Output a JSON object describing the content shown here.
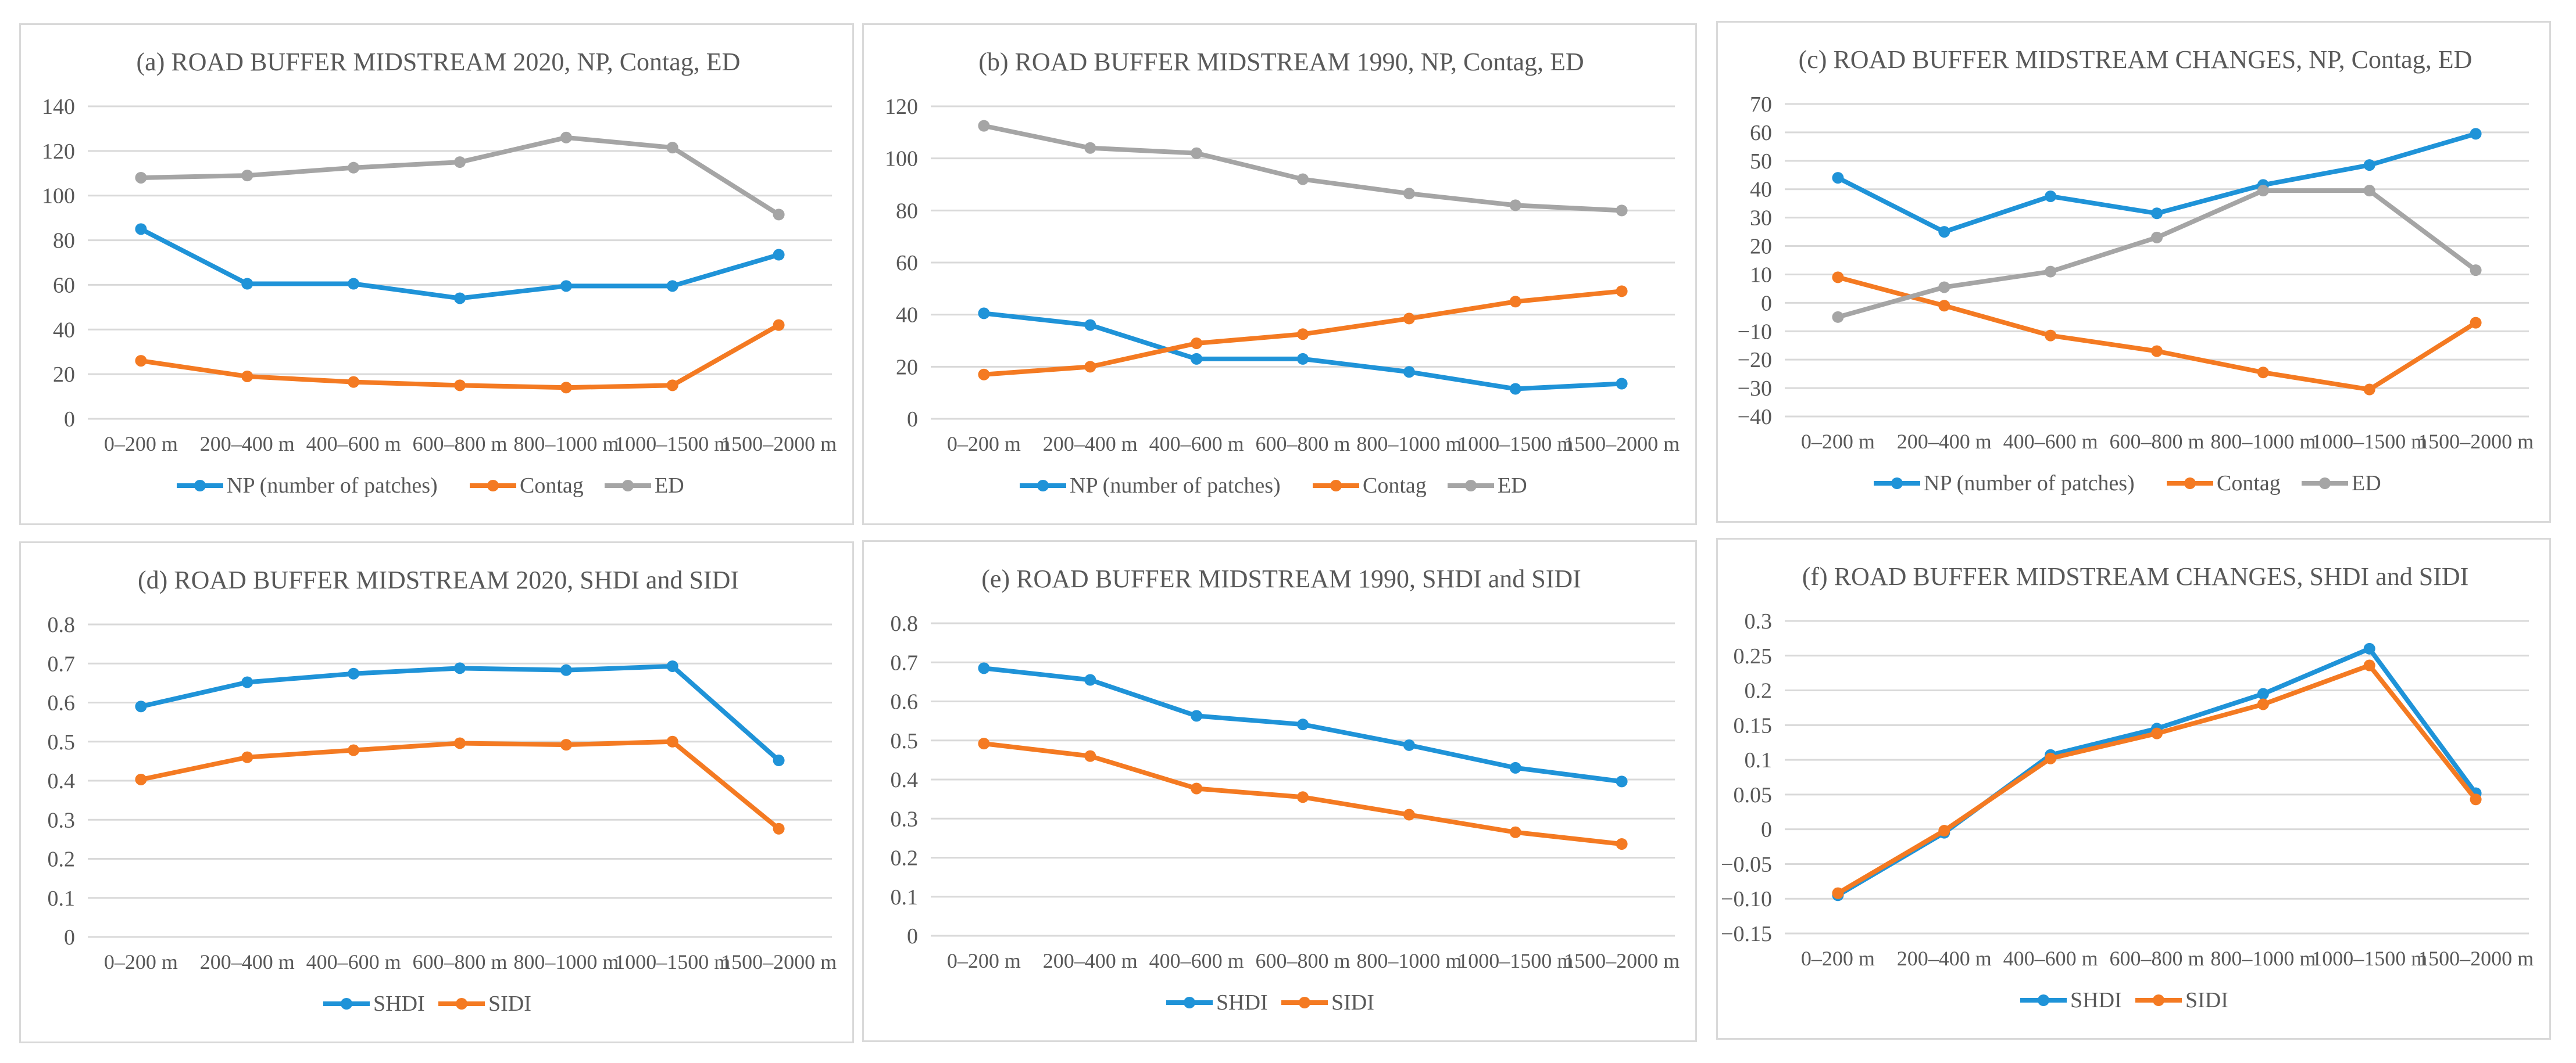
{
  "colors": {
    "blue": "#1f93d8",
    "orange": "#f47a22",
    "grey": "#a5a5a5",
    "grid": "#d9d9d9",
    "text": "#595959"
  },
  "chart_data": [
    {
      "id": "a",
      "type": "line",
      "title": "(a) ROAD BUFFER MIDSTREAM 2020, NP, Contag, ED",
      "categories": [
        "0–200 m",
        "200–400 m",
        "400–600 m",
        "600–800 m",
        "800–1000 m",
        "1000–1500 m",
        "1500–2000 m"
      ],
      "ylim": [
        0,
        140
      ],
      "yticks": [
        0,
        20,
        40,
        60,
        80,
        100,
        120,
        140
      ],
      "ytick_labels": [
        "0",
        "20",
        "40",
        "60",
        "80",
        "100",
        "120",
        "140"
      ],
      "grid": true,
      "legend": "bottom",
      "series": [
        {
          "name": "NP (number of patches)",
          "color": "#1f93d8",
          "values": [
            85,
            60.5,
            60.5,
            54,
            59.5,
            59.5,
            73.5
          ]
        },
        {
          "name": "Contag",
          "color": "#f47a22",
          "values": [
            26,
            19,
            16.5,
            15,
            14,
            15,
            42
          ]
        },
        {
          "name": "ED",
          "color": "#a5a5a5",
          "values": [
            108,
            109,
            112.5,
            115,
            126,
            121.5,
            91.5
          ]
        }
      ]
    },
    {
      "id": "b",
      "type": "line",
      "title": "(b) ROAD BUFFER MIDSTREAM 1990, NP, Contag, ED",
      "categories": [
        "0–200 m",
        "200–400 m",
        "400–600 m",
        "600–800 m",
        "800–1000 m",
        "1000–1500 m",
        "1500–2000 m"
      ],
      "ylim": [
        0,
        120
      ],
      "yticks": [
        0,
        20,
        40,
        60,
        80,
        100,
        120
      ],
      "ytick_labels": [
        "0",
        "20",
        "40",
        "60",
        "80",
        "100",
        "120"
      ],
      "grid": true,
      "legend": "bottom",
      "series": [
        {
          "name": "NP (number of patches)",
          "color": "#1f93d8",
          "values": [
            40.5,
            36,
            23,
            23,
            18,
            11.5,
            13.5
          ]
        },
        {
          "name": "Contag",
          "color": "#f47a22",
          "values": [
            17,
            20,
            29,
            32.5,
            38.5,
            45,
            49
          ]
        },
        {
          "name": "ED",
          "color": "#a5a5a5",
          "values": [
            112.5,
            104,
            102,
            92,
            86.5,
            82,
            80
          ]
        }
      ]
    },
    {
      "id": "c",
      "type": "line",
      "title": "(c) ROAD BUFFER MIDSTREAM  CHANGES,  NP, Contag, ED",
      "categories": [
        "0–200 m",
        "200–400 m",
        "400–600 m",
        "600–800 m",
        "800–1000 m",
        "1000–1500 m",
        "1500–2000 m"
      ],
      "ylim": [
        -40,
        70
      ],
      "yticks": [
        -40,
        -30,
        -20,
        -10,
        0,
        10,
        20,
        30,
        40,
        50,
        60,
        70
      ],
      "ytick_labels": [
        "−40",
        "−30",
        "−20",
        "−10",
        "0",
        "10",
        "20",
        "30",
        "40",
        "50",
        "60",
        "70"
      ],
      "grid": true,
      "legend": "bottom",
      "series": [
        {
          "name": "NP (number of patches)",
          "color": "#1f93d8",
          "values": [
            44,
            25,
            37.5,
            31.5,
            41.5,
            48.5,
            59.5
          ]
        },
        {
          "name": "Contag",
          "color": "#f47a22",
          "values": [
            9,
            -1,
            -11.5,
            -17,
            -24.5,
            -30.5,
            -7
          ]
        },
        {
          "name": "ED",
          "color": "#a5a5a5",
          "values": [
            -5,
            5.5,
            11,
            23,
            39.5,
            39.5,
            11.5
          ]
        }
      ]
    },
    {
      "id": "d",
      "type": "line",
      "title": "(d) ROAD BUFFER MIDSTREAM 2020, SHDI and SIDI",
      "categories": [
        "0–200 m",
        "200–400 m",
        "400–600 m",
        "600–800 m",
        "800–1000 m",
        "1000–1500 m",
        "1500–2000 m"
      ],
      "ylim": [
        0,
        0.8
      ],
      "yticks": [
        0,
        0.1,
        0.2,
        0.3,
        0.4,
        0.5,
        0.6,
        0.7,
        0.8
      ],
      "ytick_labels": [
        "0",
        "0.1",
        "0.2",
        "0.3",
        "0.4",
        "0.5",
        "0.6",
        "0.7",
        "0.8"
      ],
      "grid": true,
      "legend": "bottom",
      "series": [
        {
          "name": "SHDI",
          "color": "#1f93d8",
          "values": [
            0.59,
            0.652,
            0.674,
            0.688,
            0.683,
            0.693,
            0.452
          ]
        },
        {
          "name": "SIDI",
          "color": "#f47a22",
          "values": [
            0.403,
            0.46,
            0.478,
            0.496,
            0.492,
            0.5,
            0.277
          ]
        }
      ]
    },
    {
      "id": "e",
      "type": "line",
      "title": "(e) ROAD BUFFER MIDSTREAM 1990, SHDI and SIDI",
      "categories": [
        "0–200 m",
        "200–400 m",
        "400–600 m",
        "600–800 m",
        "800–1000 m",
        "1000–1500 m",
        "1500–2000 m"
      ],
      "ylim": [
        0,
        0.8
      ],
      "yticks": [
        0,
        0.1,
        0.2,
        0.3,
        0.4,
        0.5,
        0.6,
        0.7,
        0.8
      ],
      "ytick_labels": [
        "0",
        "0.1",
        "0.2",
        "0.3",
        "0.4",
        "0.5",
        "0.6",
        "0.7",
        "0.8"
      ],
      "grid": true,
      "legend": "bottom",
      "series": [
        {
          "name": "SHDI",
          "color": "#1f93d8",
          "values": [
            0.685,
            0.655,
            0.563,
            0.541,
            0.488,
            0.43,
            0.395
          ]
        },
        {
          "name": "SIDI",
          "color": "#f47a22",
          "values": [
            0.492,
            0.46,
            0.377,
            0.355,
            0.31,
            0.265,
            0.235
          ]
        }
      ]
    },
    {
      "id": "f",
      "type": "line",
      "title": "(f) ROAD BUFFER MIDSTREAM  CHANGES,  SHDI  and SIDI",
      "categories": [
        "0–200 m",
        "200–400 m",
        "400–600 m",
        "600–800 m",
        "800–1000 m",
        "1000–1500 m",
        "1500–2000 m"
      ],
      "ylim": [
        -0.15,
        0.3
      ],
      "yticks": [
        -0.15,
        -0.1,
        -0.05,
        0,
        0.05,
        0.1,
        0.15,
        0.2,
        0.25,
        0.3
      ],
      "ytick_labels": [
        "−0.15",
        "−0.10",
        "−0.05",
        "0",
        "0.05",
        "0.1",
        "0.15",
        "0.2",
        "0.25",
        "0.3"
      ],
      "grid": true,
      "legend": "bottom",
      "series": [
        {
          "name": "SHDI",
          "color": "#1f93d8",
          "values": [
            -0.095,
            -0.005,
            0.107,
            0.145,
            0.195,
            0.26,
            0.052
          ]
        },
        {
          "name": "SIDI",
          "color": "#f47a22",
          "values": [
            -0.092,
            -0.002,
            0.102,
            0.138,
            0.18,
            0.236,
            0.043
          ]
        }
      ]
    }
  ]
}
